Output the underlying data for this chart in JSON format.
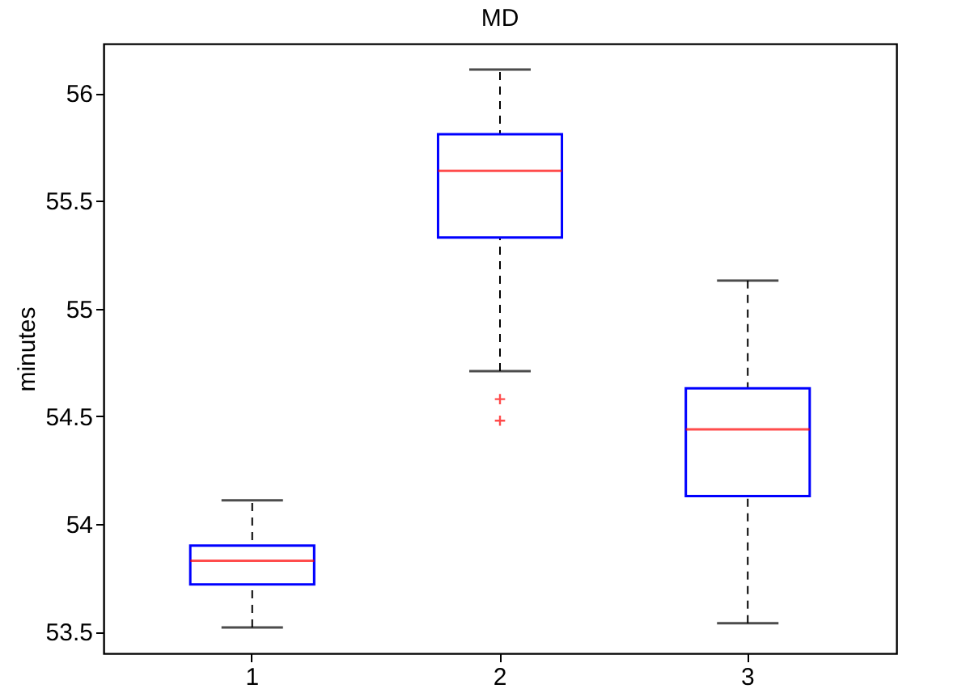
{
  "chart_data": {
    "type": "box",
    "title": "MD",
    "ylabel": "minutes",
    "categories": [
      "1",
      "2",
      "3"
    ],
    "ylim": [
      53.4,
      56.23
    ],
    "yticks": [
      53.5,
      54,
      54.5,
      55,
      55.5,
      56
    ],
    "grid": false,
    "series": [
      {
        "color": "#0000ff",
        "boxes": [
          {
            "low": 53.52,
            "q1": 53.72,
            "median": 53.83,
            "q3": 53.9,
            "high": 54.11
          },
          {
            "low": 54.71,
            "q1": 55.33,
            "median": 55.64,
            "q3": 55.81,
            "high": 56.11,
            "outliers": [
              54.58,
              54.48
            ]
          },
          {
            "low": 53.54,
            "q1": 54.13,
            "median": 54.44,
            "q3": 54.63,
            "high": 55.13
          }
        ]
      }
    ]
  }
}
